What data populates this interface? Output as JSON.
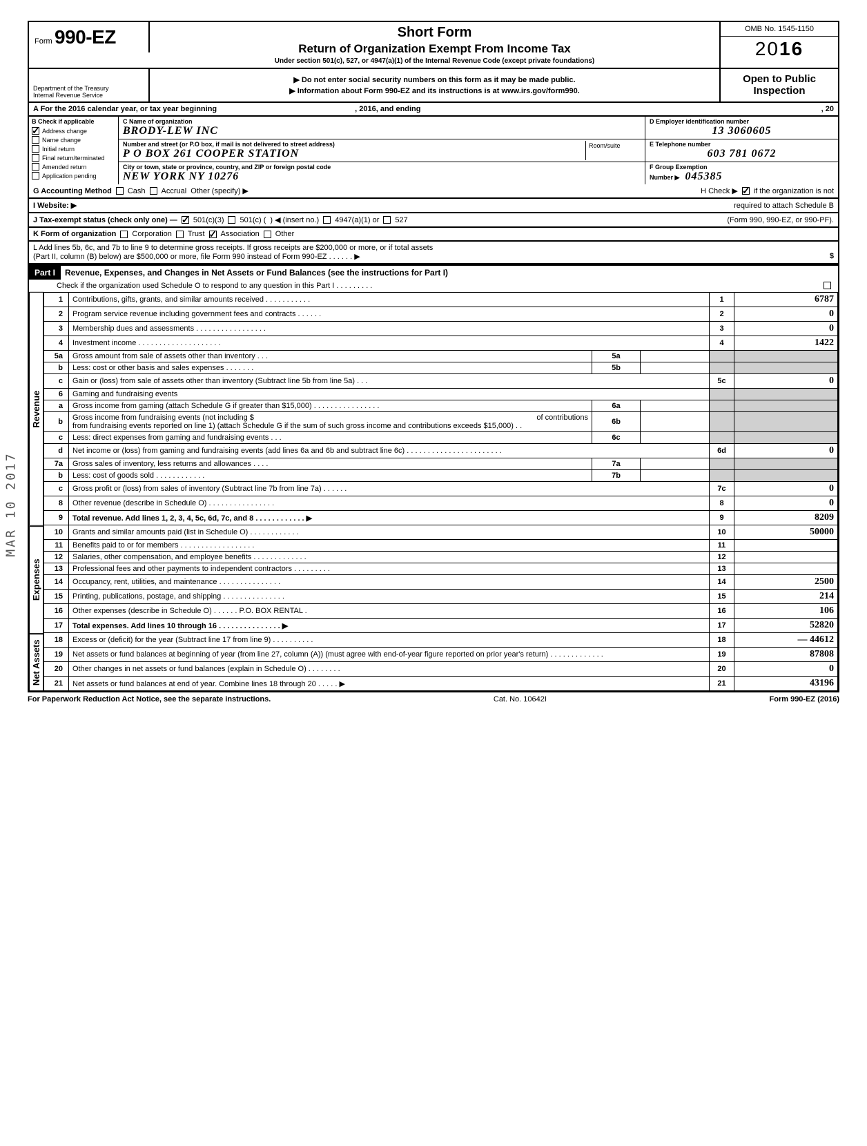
{
  "form": {
    "prefix": "Form",
    "number": "990-EZ",
    "title": "Short Form",
    "subtitle": "Return of Organization Exempt From Income Tax",
    "under": "Under section 501(c), 527, or 4947(a)(1) of the Internal Revenue Code (except private foundations)",
    "line1": "▶ Do not enter social security numbers on this form as it may be made public.",
    "line2": "▶ Information about Form 990-EZ and its instructions is at www.irs.gov/form990.",
    "omb": "OMB No. 1545-1150",
    "year_prefix": "20",
    "year_bold": "16",
    "open": "Open to Public",
    "inspection": "Inspection",
    "dept1": "Department of the Treasury",
    "dept2": "Internal Revenue Service"
  },
  "section_a": {
    "left": "A  For the 2016 calendar year, or tax year beginning",
    "mid": ", 2016, and ending",
    "right": ", 20"
  },
  "check_b": {
    "header": "B Check if applicable",
    "items": [
      "Address change",
      "Name change",
      "Initial return",
      "Final return/terminated",
      "Amended return",
      "Application pending"
    ],
    "checked": [
      true,
      false,
      false,
      false,
      false,
      false
    ]
  },
  "org": {
    "c_label": "C  Name of organization",
    "name": "BRODY-LEW INC",
    "addr_label": "Number and street (or P.O  box, if mail is not delivered to street address)",
    "addr": "P O BOX 261      COOPER STATION",
    "room_label": "Room/suite",
    "city_label": "City or town, state or province, country, and ZIP or foreign postal code",
    "city": "NEW YORK   NY  10276"
  },
  "right": {
    "d_label": "D Employer identification number",
    "d_val": "13 3060605",
    "e_label": "E  Telephone number",
    "e_val": "603 781 0672",
    "f_label": "F  Group Exemption",
    "f_label2": "Number  ▶",
    "f_val": "045385"
  },
  "g_row": {
    "g": "G  Accounting Method",
    "cash": "Cash",
    "accrual": "Accrual",
    "other": "Other (specify) ▶",
    "h": "H  Check ▶",
    "h2": "if the organization is not",
    "h3": "required to attach Schedule B"
  },
  "i_row": {
    "i": "I   Website: ▶"
  },
  "j_row": {
    "j": "J  Tax-exempt status (check only one) —",
    "a": "501(c)(3)",
    "b": "501(c) (",
    "c": ") ◀ (insert no.)",
    "d": "4947(a)(1) or",
    "e": "527",
    "right": "(Form 990, 990-EZ, or 990-PF)."
  },
  "k_row": {
    "k": "K  Form of organization",
    "a": "Corporation",
    "b": "Trust",
    "c": "Association",
    "d": "Other"
  },
  "l_row": {
    "l1": "L  Add lines 5b, 6c, and 7b to line 9 to determine gross receipts. If gross receipts are $200,000 or more, or if total assets",
    "l2": "(Part II, column (B) below) are $500,000 or more, file Form 990 instead of Form 990-EZ .    .    .    .    .    .    ▶",
    "dollar": "$"
  },
  "part1": {
    "tag": "Part I",
    "title": "Revenue, Expenses, and Changes in Net Assets or Fund Balances (see the instructions for Part I)",
    "check_o": "Check if the organization used Schedule O to respond to any question in this Part I .   .   .   .   .   .   .   .   ."
  },
  "sides": {
    "revenue": "Revenue",
    "expenses": "Expenses",
    "netassets": "Net Assets"
  },
  "lines": {
    "1": {
      "n": "1",
      "t": "Contributions, gifts, grants, and similar amounts received .   .   .   .   .   .   .   .   .   .   .",
      "box": "1",
      "amt": "6787"
    },
    "2": {
      "n": "2",
      "t": "Program service revenue including government fees and contracts    .    .    .    .    .    .",
      "box": "2",
      "amt": "0"
    },
    "3": {
      "n": "3",
      "t": "Membership dues and assessments .   .   .   .   .   .   .   .   .   .   .   .   .   .   .   .   .",
      "box": "3",
      "amt": "0"
    },
    "4": {
      "n": "4",
      "t": "Investment income    .   .   .   .   .   .   .   .   .   .   .   .   .   .   .   .   .   .   .   .",
      "box": "4",
      "amt": "1422"
    },
    "5a": {
      "n": "5a",
      "t": "Gross amount from sale of assets other than inventory    .   .   .",
      "ib": "5a"
    },
    "5b": {
      "n": "b",
      "t": "Less: cost or other basis and sales expenses .   .   .   .   .   .   .",
      "ib": "5b"
    },
    "5c": {
      "n": "c",
      "t": "Gain or (loss) from sale of assets other than inventory (Subtract line 5b from line 5a) .   .   .",
      "box": "5c",
      "amt": "0"
    },
    "6": {
      "n": "6",
      "t": "Gaming and fundraising events"
    },
    "6a": {
      "n": "a",
      "t": "Gross income from gaming (attach Schedule G if greater than $15,000) .   .   .   .   .   .   .   .   .   .   .   .   .   .   .   .",
      "ib": "6a"
    },
    "6b": {
      "n": "b",
      "t": "Gross income from fundraising events (not including  $",
      "t2": "of contributions",
      "t3": "from fundraising events reported on line 1) (attach Schedule G if the sum of such gross income and contributions exceeds $15,000) .   .",
      "ib": "6b"
    },
    "6c": {
      "n": "c",
      "t": "Less: direct expenses from gaming and fundraising events   .   .   .",
      "ib": "6c"
    },
    "6d": {
      "n": "d",
      "t": "Net income or (loss) from gaming and fundraising events (add lines 6a and 6b and subtract line 6c)    .   .   .   .   .   .   .   .   .   .   .   .   .   .   .   .   .   .   .   .   .   .   .",
      "box": "6d",
      "amt": "0"
    },
    "7a": {
      "n": "7a",
      "t": "Gross sales of inventory, less returns and allowances .   .   .   .",
      "ib": "7a"
    },
    "7b": {
      "n": "b",
      "t": "Less: cost of goods sold    .   .   .   .   .   .   .   .   .   .   .   .",
      "ib": "7b"
    },
    "7c": {
      "n": "c",
      "t": "Gross profit or (loss) from sales of inventory (Subtract line 7b from line 7a)  .   .   .   .   .   .",
      "box": "7c",
      "amt": "0"
    },
    "8": {
      "n": "8",
      "t": "Other revenue (describe in Schedule O) .   .   .   .   .   .   .   .   .   .   .   .   .   .   .   .",
      "box": "8",
      "amt": "0"
    },
    "9": {
      "n": "9",
      "t": "Total revenue. Add lines 1, 2, 3, 4, 5c, 6d, 7c, and 8   .   .   .   .   .   .   .   .   .   .   .   .   ▶",
      "box": "9",
      "amt": "8209",
      "bold": true
    },
    "10": {
      "n": "10",
      "t": "Grants and similar amounts paid (list in Schedule O)    .   .   .   .   .   .   .   .   .   .   .   .",
      "box": "10",
      "amt": "50000"
    },
    "11": {
      "n": "11",
      "t": "Benefits paid to or for members  .   .   .   .   .   .   .   .   .   .   .   .   .   .   .   .   .   .",
      "box": "11",
      "amt": ""
    },
    "12": {
      "n": "12",
      "t": "Salaries, other compensation, and employee benefits .   .   .   .   .   .   .   .   .   .   .   .   .",
      "box": "12",
      "amt": ""
    },
    "13": {
      "n": "13",
      "t": "Professional fees and other payments to independent contractors .   .   .   .   .   .   .   .   .",
      "box": "13",
      "amt": ""
    },
    "14": {
      "n": "14",
      "t": "Occupancy, rent, utilities, and maintenance   .   .   .   .   .   .   .   .   .   .   .   .   .   .   .",
      "box": "14",
      "amt": "2500"
    },
    "15": {
      "n": "15",
      "t": "Printing, publications, postage, and shipping .   .   .   .   .   .   .   .   .   .   .   .   .   .   .",
      "box": "15",
      "amt": "214"
    },
    "16": {
      "n": "16",
      "t": "Other expenses (describe in Schedule O) .   .   .   .   .   .   P.O.  BOX  RENTAL .",
      "box": "16",
      "amt": "106"
    },
    "17": {
      "n": "17",
      "t": "Total expenses. Add lines 10 through 16 .   .   .   .   .   .   .   .   .   .   .   .   .   .   .   ▶",
      "box": "17",
      "amt": "52820",
      "bold": true
    },
    "18": {
      "n": "18",
      "t": "Excess or (deficit) for the year (Subtract line 17 from line 9)   .   .   .   .   .   .   .   .   .   .",
      "box": "18",
      "amt": "— 44612"
    },
    "19": {
      "n": "19",
      "t": "Net assets or fund balances at beginning of year (from line 27, column (A)) (must agree with end-of-year figure reported on prior year's return)    .   .   .   .   .   .   .   .   .   .   .   .   .",
      "box": "19",
      "amt": "87808"
    },
    "20": {
      "n": "20",
      "t": "Other changes in net assets or fund balances (explain in Schedule O) .   .   .   .   .   .   .   .",
      "box": "20",
      "amt": "0"
    },
    "21": {
      "n": "21",
      "t": "Net assets or fund balances at end of year. Combine lines 18 through 20    .   .   .   .   .   ▶",
      "box": "21",
      "amt": "43196"
    }
  },
  "footer": {
    "l": "For Paperwork Reduction Act Notice, see the separate instructions.",
    "c": "Cat. No. 10642I",
    "r": "Form 990-EZ (2016)"
  },
  "stamp": "MAR 10 2017",
  "colors": {
    "border": "#000000",
    "shaded": "#d0d0d0",
    "hand": "#000000"
  }
}
